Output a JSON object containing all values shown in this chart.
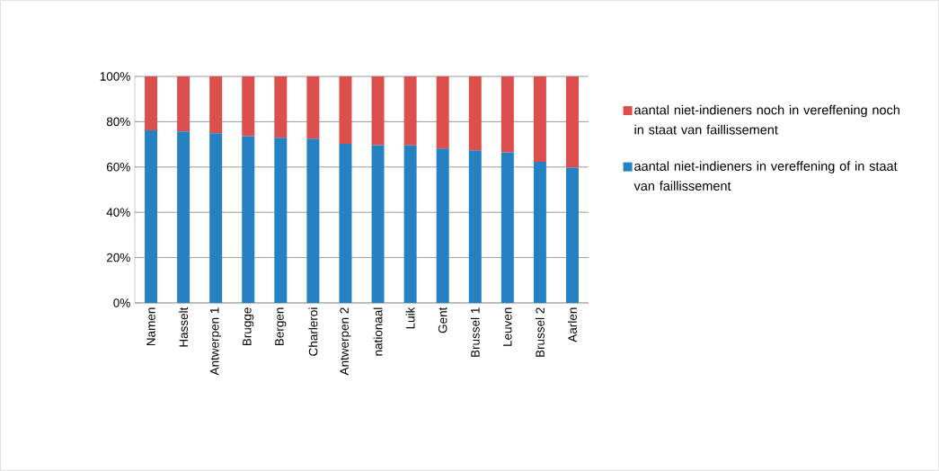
{
  "chart_data": {
    "type": "bar",
    "stacked": true,
    "categories": [
      "Namen",
      "Hasselt",
      "Antwerpen 1",
      "Brugge",
      "Bergen",
      "Charleroi",
      "Antwerpen 2",
      "nationaal",
      "Luik",
      "Gent",
      "Brussel 1",
      "Leuven",
      "Brussel 2",
      "Aarlen"
    ],
    "series": [
      {
        "name": "aantal niet-indieners in vereffening of in staat van faillissement",
        "color": "#2681c2",
        "values": [
          76.2,
          75.7,
          74.9,
          73.6,
          72.9,
          72.5,
          70.2,
          69.6,
          69.5,
          68.1,
          67.4,
          66.5,
          62.3,
          59.7
        ]
      },
      {
        "name": "aantal niet-indieners  noch in vereffening noch in staat van faillissement",
        "color": "#dd4f4c",
        "values": [
          23.8,
          24.3,
          25.1,
          26.4,
          27.1,
          27.5,
          29.8,
          30.4,
          30.5,
          31.9,
          32.6,
          33.5,
          37.7,
          40.3
        ]
      }
    ],
    "ylim": [
      0,
      100
    ],
    "yticks": [
      {
        "value": 0,
        "label": "0%"
      },
      {
        "value": 20,
        "label": "20%"
      },
      {
        "value": 40,
        "label": "40%"
      },
      {
        "value": 60,
        "label": "60%"
      },
      {
        "value": 80,
        "label": "80%"
      },
      {
        "value": 100,
        "label": "100%"
      }
    ],
    "grid": "y",
    "legend": "right"
  }
}
